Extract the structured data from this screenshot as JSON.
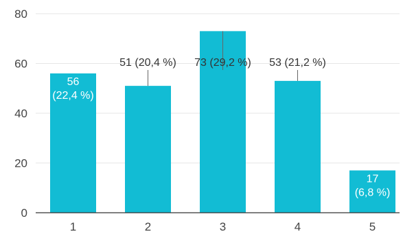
{
  "chart_data": {
    "type": "bar",
    "categories": [
      "1",
      "2",
      "3",
      "4",
      "5"
    ],
    "values": [
      56,
      51,
      73,
      53,
      17
    ],
    "data_labels": [
      {
        "lines": [
          "56",
          "(22,4 %)"
        ],
        "placement": "inside"
      },
      {
        "lines": [
          "51 (20,4 %)"
        ],
        "placement": "outside"
      },
      {
        "lines": [
          "73 (29,2 %)"
        ],
        "placement": "outside"
      },
      {
        "lines": [
          "53 (21,2 %)"
        ],
        "placement": "outside"
      },
      {
        "lines": [
          "17",
          "(6,8 %)"
        ],
        "placement": "inside"
      }
    ],
    "y_ticks": [
      "0",
      "20",
      "40",
      "60",
      "80"
    ],
    "ylim": [
      0,
      80
    ],
    "grid": true,
    "legend": false,
    "colors": {
      "bar": "#12bcd4"
    }
  }
}
